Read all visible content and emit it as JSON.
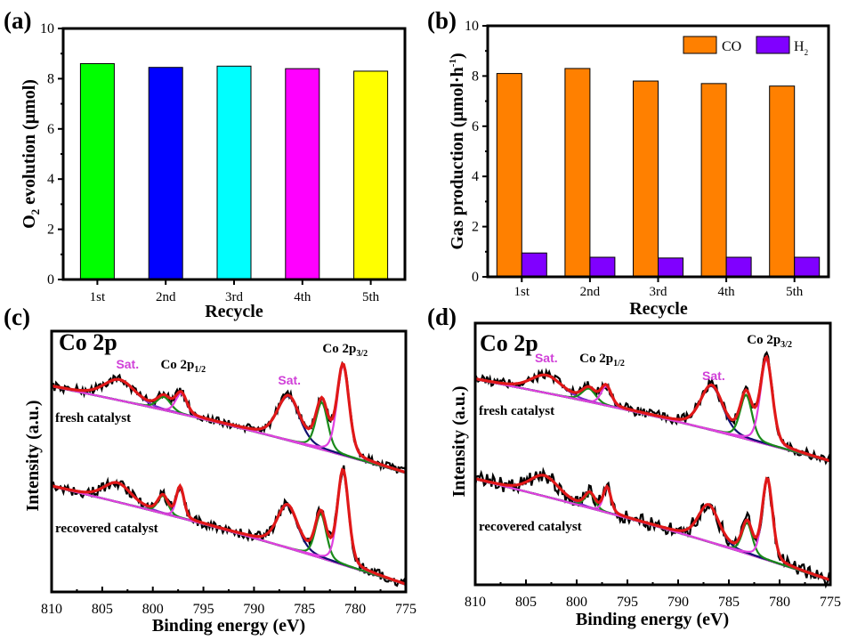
{
  "chart_data": [
    {
      "panel": "(a)",
      "type": "bar",
      "title": "",
      "xlabel": "Recycle",
      "ylabel": "O2 evolution (μmol)",
      "ylabel_parts": {
        "pre": "O",
        "sub": "2",
        "post": " evolution (μmol)"
      },
      "categories": [
        "1st",
        "2nd",
        "3rd",
        "4th",
        "5th"
      ],
      "values": [
        8.6,
        8.45,
        8.5,
        8.4,
        8.3
      ],
      "bar_colors": [
        "#00ff00",
        "#0000ff",
        "#00ffff",
        "#ff00ff",
        "#ffff00"
      ],
      "ylim": [
        0,
        10
      ],
      "yticks": [
        0,
        2,
        4,
        6,
        8,
        10
      ],
      "grid": false,
      "legend": null
    },
    {
      "panel": "(b)",
      "type": "bar",
      "title": "",
      "xlabel": "Recycle",
      "ylabel": "Gas production (μmol·h⁻¹)",
      "ylabel_parts": {
        "pre": "Gas production (μmol·h",
        "sup": "-1",
        "post": ")"
      },
      "categories": [
        "1st",
        "2nd",
        "3rd",
        "4th",
        "5th"
      ],
      "series": [
        {
          "name": "CO",
          "name_parts": {
            "pre": "CO",
            "sub": ""
          },
          "color": "#ff8000",
          "values": [
            8.1,
            8.3,
            7.8,
            7.7,
            7.6
          ]
        },
        {
          "name": "H2",
          "name_parts": {
            "pre": "H",
            "sub": "2"
          },
          "color": "#8000ff",
          "values": [
            0.95,
            0.78,
            0.75,
            0.78,
            0.78
          ]
        }
      ],
      "ylim": [
        0,
        10
      ],
      "yticks": [
        0,
        2,
        4,
        6,
        8,
        10
      ],
      "grid": false,
      "legend": "top-right"
    },
    {
      "panel": "(c)",
      "type": "line",
      "title": "Co 2p",
      "xlabel": "Binding energy (eV)",
      "ylabel": "Intensity (a.u.)",
      "xlim": [
        810,
        775
      ],
      "xticks": [
        810,
        805,
        800,
        795,
        790,
        785,
        780,
        775
      ],
      "annotations": [
        {
          "text": "Sat.",
          "x_ev": 802.5,
          "color": "#d040d8"
        },
        {
          "text": "Co 2p",
          "sub": "1/2",
          "x_ev": 797.0,
          "color": "#000000"
        },
        {
          "text": "Sat.",
          "x_ev": 786.5,
          "color": "#d040d8"
        },
        {
          "text": "Co 2p",
          "sub": "3/2",
          "x_ev": 781.0,
          "color": "#000000"
        }
      ],
      "spectra": [
        {
          "label": "fresh catalyst",
          "offset": 1.0,
          "background": {
            "start": 0.62,
            "end": 0.03
          },
          "peaks": [
            {
              "component": "Co 2p1/2 satellite",
              "center": 803.3,
              "height": 0.14,
              "width": 3.6,
              "color": "#7a2ad0"
            },
            {
              "component": "Co 2p1/2 Co3+",
              "center": 798.9,
              "height": 0.09,
              "width": 1.6,
              "color": "#1a8a1a"
            },
            {
              "component": "Co 2p1/2 Co2+",
              "center": 797.2,
              "height": 0.14,
              "width": 1.3,
              "color": "#e040e0"
            },
            {
              "component": "Co 2p3/2 satellite",
              "center": 786.6,
              "height": 0.3,
              "width": 2.6,
              "color": "#101070"
            },
            {
              "component": "Co 2p3/2 Co3+",
              "center": 783.3,
              "height": 0.32,
              "width": 1.4,
              "color": "#1a8a1a"
            },
            {
              "component": "Co 2p3/2 Co2+",
              "center": 781.2,
              "height": 0.61,
              "width": 1.4,
              "color": "#e040e0"
            }
          ]
        },
        {
          "label": "recovered catalyst",
          "offset": 0.0,
          "background": {
            "start": 0.72,
            "end": 0.05
          },
          "peaks": [
            {
              "component": "Co 2p1/2 satellite",
              "center": 803.5,
              "height": 0.13,
              "width": 3.2,
              "color": "#7a2ad0"
            },
            {
              "component": "Co 2p1/2 Co3+",
              "center": 799.0,
              "height": 0.12,
              "width": 1.2,
              "color": "#1a8a1a"
            },
            {
              "component": "Co 2p1/2 Co2+",
              "center": 797.3,
              "height": 0.21,
              "width": 0.9,
              "color": "#e040e0"
            },
            {
              "component": "Co 2p3/2 satellite",
              "center": 786.7,
              "height": 0.29,
              "width": 2.4,
              "color": "#101070"
            },
            {
              "component": "Co 2p3/2 Co3+",
              "center": 783.4,
              "height": 0.3,
              "width": 1.3,
              "color": "#1a8a1a"
            },
            {
              "component": "Co 2p3/2 Co2+",
              "center": 781.2,
              "height": 0.64,
              "width": 1.3,
              "color": "#e040e0"
            }
          ]
        }
      ]
    },
    {
      "panel": "(d)",
      "type": "line",
      "title": "Co 2p",
      "xlabel": "Binding energy (eV)",
      "ylabel": "Intensity (a.u.)",
      "xlim": [
        810,
        775
      ],
      "xticks": [
        810,
        805,
        800,
        795,
        790,
        785,
        780,
        775
      ],
      "annotations": [
        {
          "text": "Sat.",
          "x_ev": 803.0,
          "color": "#d040d8"
        },
        {
          "text": "Co 2p",
          "sub": "1/2",
          "x_ev": 797.5,
          "color": "#000000"
        },
        {
          "text": "Sat.",
          "x_ev": 786.5,
          "color": "#d040d8"
        },
        {
          "text": "Co 2p",
          "sub": "3/2",
          "x_ev": 781.0,
          "color": "#000000"
        }
      ],
      "spectra": [
        {
          "label": "fresh catalyst",
          "offset": 1.0,
          "background": {
            "start": 0.62,
            "end": 0.06
          },
          "peaks": [
            {
              "component": "Co 2p1/2 satellite",
              "center": 803.0,
              "height": 0.12,
              "width": 3.6,
              "color": "#7a2ad0"
            },
            {
              "component": "Co 2p1/2 Co3+",
              "center": 798.8,
              "height": 0.09,
              "width": 1.6,
              "color": "#1a8a1a"
            },
            {
              "component": "Co 2p1/2 Co2+",
              "center": 797.1,
              "height": 0.13,
              "width": 1.2,
              "color": "#e040e0"
            },
            {
              "component": "Co 2p3/2 satellite",
              "center": 786.7,
              "height": 0.3,
              "width": 2.6,
              "color": "#101070"
            },
            {
              "component": "Co 2p3/2 Co3+",
              "center": 783.3,
              "height": 0.3,
              "width": 1.4,
              "color": "#1a8a1a"
            },
            {
              "component": "Co 2p3/2 Co2+",
              "center": 781.3,
              "height": 0.58,
              "width": 1.4,
              "color": "#e040e0"
            }
          ]
        },
        {
          "label": "recovered catalyst",
          "offset": 0.0,
          "background": {
            "start": 0.72,
            "end": 0.03
          },
          "peaks": [
            {
              "component": "Co 2p1/2 satellite",
              "center": 803.2,
              "height": 0.14,
              "width": 3.4,
              "color": "#7a2ad0"
            },
            {
              "component": "Co 2p1/2 Co3+",
              "center": 798.7,
              "height": 0.1,
              "width": 1.2,
              "color": "#1a8a1a"
            },
            {
              "component": "Co 2p1/2 Co2+",
              "center": 797.0,
              "height": 0.17,
              "width": 0.9,
              "color": "#e040e0"
            },
            {
              "component": "Co 2p3/2 satellite",
              "center": 787.0,
              "height": 0.25,
              "width": 2.4,
              "color": "#101070"
            },
            {
              "component": "Co 2p3/2 Co3+",
              "center": 783.2,
              "height": 0.21,
              "width": 1.2,
              "color": "#1a8a1a"
            },
            {
              "component": "Co 2p3/2 Co2+",
              "center": 781.2,
              "height": 0.55,
              "width": 1.2,
              "color": "#e040e0"
            }
          ]
        }
      ]
    }
  ],
  "colors": {
    "raw_data": "#000000",
    "envelope": "#e01818",
    "background_line": "#3c2aa8",
    "baseline_purple": "#7a2ad0"
  }
}
